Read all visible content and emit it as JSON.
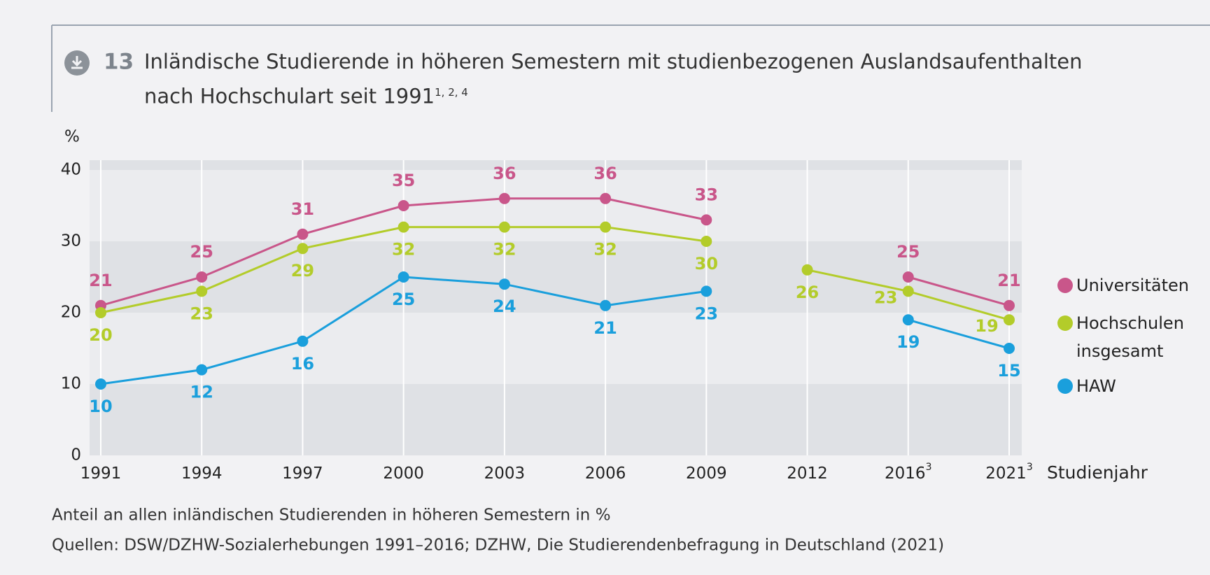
{
  "chart_data": {
    "type": "line",
    "number": "13",
    "title": "Inländische Studierende in höheren Semestern mit studienbezogenen Auslandsaufenthalten nach Hochschulart seit 1991",
    "title_superscript": "1, 2, 4",
    "y_label": "%",
    "x_label": "Studienjahr",
    "categories": [
      "1991",
      "1994",
      "1997",
      "2000",
      "2003",
      "2006",
      "2009",
      "2012",
      "2016",
      "2021"
    ],
    "category_superscripts": [
      null,
      null,
      null,
      null,
      null,
      null,
      null,
      null,
      "3",
      "3"
    ],
    "gap_after": "2009",
    "series": [
      {
        "name": "Universitäten",
        "color": "#c9568a",
        "values": [
          21,
          25,
          31,
          35,
          36,
          36,
          33,
          null,
          25,
          21
        ]
      },
      {
        "name": "Hochschulen insgesamt",
        "color": "#b3cc2a",
        "values": [
          20,
          23,
          29,
          32,
          32,
          32,
          30,
          26,
          23,
          19
        ]
      },
      {
        "name": "HAW",
        "color": "#1a9fdc",
        "values": [
          10,
          12,
          16,
          25,
          24,
          21,
          23,
          null,
          19,
          15
        ]
      }
    ],
    "ylim": [
      0,
      40
    ],
    "yticks": [
      0,
      10,
      20,
      30,
      40
    ],
    "grid": true,
    "note": "Anteil an allen inländischen Studierenden in höheren Semestern in %",
    "source": "Quellen: DSW/DZHW-Sozialerhebungen 1991–2016; DZHW, Die Studierendenbefragung in Deutschland (2021)"
  }
}
